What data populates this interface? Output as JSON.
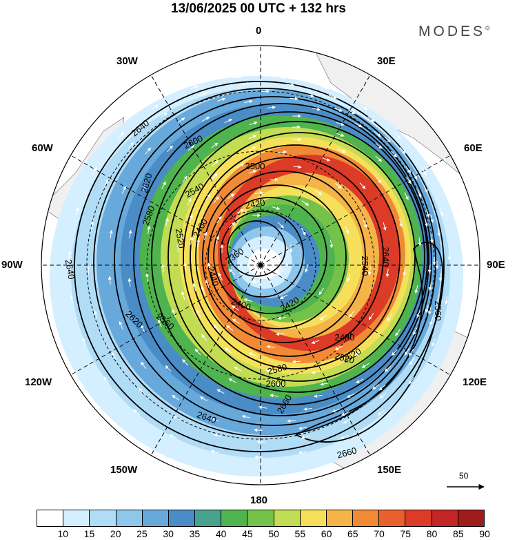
{
  "title": "13/06/2025  00 UTC  + 132 hrs",
  "brand": "MODES",
  "brand_mark": "©",
  "longitude_labels": {
    "top": "0",
    "ne": "30E",
    "e60": "60E",
    "e90": "90E",
    "e120": "120E",
    "e150": "150E",
    "bottom": "180",
    "w150": "150W",
    "w120": "120W",
    "w90": "90W",
    "w60": "60W",
    "w30": "30W"
  },
  "reference_vector_label": "50",
  "colorbar": {
    "labels": [
      "10",
      "15",
      "20",
      "25",
      "30",
      "35",
      "40",
      "45",
      "50",
      "55",
      "60",
      "65",
      "70",
      "75",
      "80",
      "85",
      "90"
    ],
    "colors": [
      "#ffffff",
      "#d4efff",
      "#b0dcf6",
      "#8fc6ec",
      "#68a9dc",
      "#4a8cc6",
      "#47a38d",
      "#4fb34e",
      "#75c24a",
      "#c2dc54",
      "#f6e05a",
      "#f5b447",
      "#f18a36",
      "#e8612d",
      "#dc3b27",
      "#c42525",
      "#9e1c1c"
    ]
  },
  "chart_data": {
    "type": "polar-stereographic-map",
    "projection_center": "Pole",
    "shading_units_bins": [
      "10",
      "15",
      "20",
      "25",
      "30",
      "35",
      "40",
      "45",
      "50",
      "55",
      "60",
      "65",
      "70",
      "75",
      "80",
      "85",
      "90"
    ],
    "contour_labels": [
      "2360",
      "2400",
      "2420",
      "2440",
      "2460",
      "2480",
      "2500",
      "2520",
      "2540",
      "2560",
      "2580",
      "2600",
      "2620",
      "2640",
      "2660"
    ],
    "arrows": "wind vectors"
  }
}
